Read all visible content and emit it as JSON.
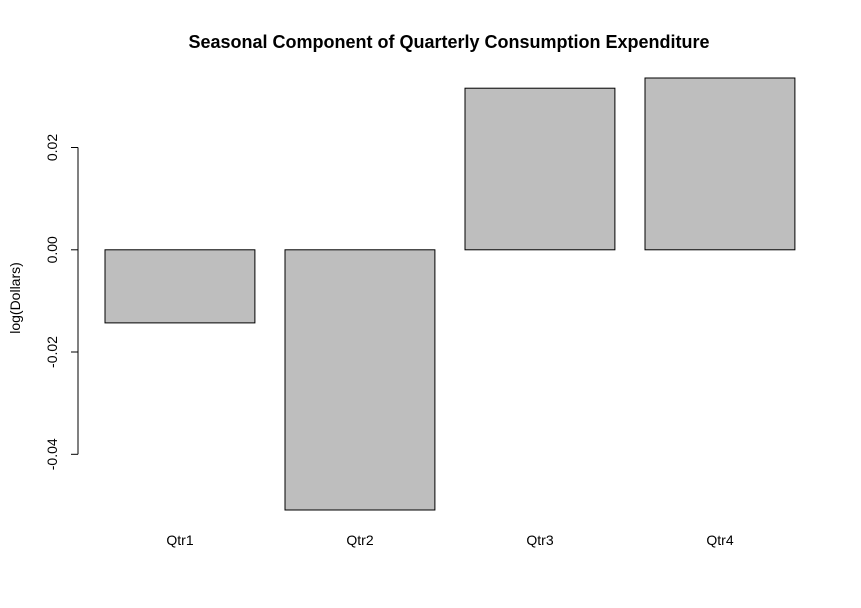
{
  "chart_data": {
    "type": "bar",
    "title": "Seasonal Component of Quarterly Consumption Expenditure",
    "xlabel": "",
    "ylabel": "log(Dollars)",
    "categories": [
      "Qtr1",
      "Qtr2",
      "Qtr3",
      "Qtr4"
    ],
    "values": [
      -0.0143,
      -0.0509,
      0.0316,
      0.0336
    ],
    "ylim": [
      -0.0509,
      0.0336
    ],
    "yticks": [
      -0.04,
      -0.02,
      0.0,
      0.02
    ],
    "ytick_labels": [
      "-0.04",
      "-0.02",
      "0.00",
      "0.02"
    ],
    "grid": false,
    "legend": "none",
    "bar_color": "#bebebe"
  }
}
